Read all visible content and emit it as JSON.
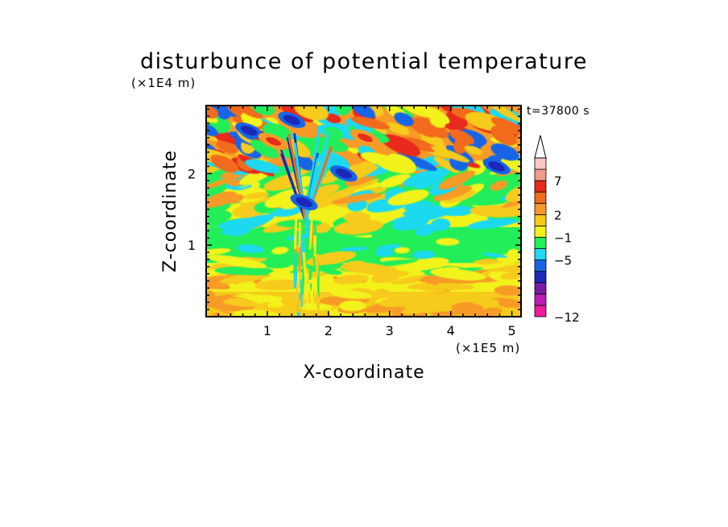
{
  "chart_data": {
    "type": "heatmap",
    "title": "disturbunce of potential temperature",
    "xlabel": "X-coordinate",
    "ylabel": "Z-coordinate",
    "x_unit": "(×1E5 m)",
    "y_unit": "(×1E4 m)",
    "time_label": "t=37800 s",
    "xlim": [
      0,
      5.15
    ],
    "ylim": [
      0,
      2.95
    ],
    "x_ticks": [
      1,
      2,
      3,
      4,
      5
    ],
    "y_ticks": [
      1,
      2
    ],
    "colorbar": {
      "colors": [
        "#ee1c9b",
        "#c01bb3",
        "#7a1aa8",
        "#1c28b9",
        "#1565e6",
        "#1fd9f0",
        "#22ee5a",
        "#f2f21a",
        "#f6cb1a",
        "#f89a27",
        "#f26a1c",
        "#e82a1a",
        "#f29a8d",
        "#f8c6c3"
      ],
      "tick_labels": [
        "-12",
        "-5",
        "-1",
        "2",
        "7"
      ],
      "tick_boundary_index": [
        0,
        5,
        7,
        9,
        12
      ],
      "extend_top": true
    },
    "field_bands": [
      {
        "z_range": [
          0.0,
          0.35
        ],
        "typical_level": "2 to 3",
        "color_index": 8
      },
      {
        "z_range": [
          0.35,
          0.75
        ],
        "typical_level": "1 to 3",
        "color_index": 7
      },
      {
        "z_range": [
          0.75,
          1.25
        ],
        "typical_level": "-1 to 1",
        "color_index": 6
      },
      {
        "z_range": [
          1.25,
          1.6
        ],
        "typical_level": "0 to 2",
        "color_index": 7
      },
      {
        "z_range": [
          1.6,
          2.1
        ],
        "typical_level": "-1 to 2",
        "color_index": 6
      },
      {
        "z_range": [
          2.1,
          2.95
        ],
        "typical_level": "-5 to 7",
        "color_index": 9
      }
    ],
    "features": [
      {
        "x": 0.7,
        "z": 2.6,
        "min_level": -5
      },
      {
        "x": 1.4,
        "z": 2.75,
        "min_level": -5
      },
      {
        "x": 2.25,
        "z": 2.0,
        "min_level": -5
      },
      {
        "x": 4.75,
        "z": 2.1,
        "min_level": -5
      },
      {
        "x": 1.6,
        "z": 1.6,
        "min_level": -5
      },
      {
        "x": 1.1,
        "z": 2.45,
        "max_level": 7
      },
      {
        "x": 2.6,
        "z": 2.5,
        "max_level": 7
      }
    ]
  }
}
